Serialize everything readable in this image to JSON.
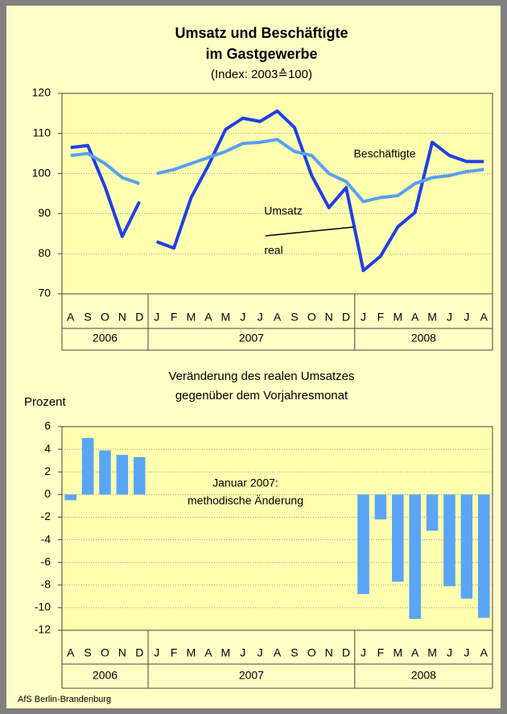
{
  "chart_data": [
    {
      "type": "line",
      "title_lines": [
        "Umsatz und Beschäftigte",
        "im Gastgewerbe"
      ],
      "subtitle": "(Index: 2003≙100)",
      "category_groups": [
        {
          "label": "2006",
          "categories": [
            "A",
            "S",
            "O",
            "N",
            "D"
          ]
        },
        {
          "label": "2007",
          "categories": [
            "J",
            "F",
            "M",
            "A",
            "M",
            "J",
            "J",
            "A",
            "S",
            "O",
            "N",
            "D"
          ],
          "joined": false
        },
        {
          "label": "2008",
          "categories": [
            "J",
            "F",
            "M",
            "A",
            "M",
            "J",
            "J",
            "A"
          ],
          "joined": true
        }
      ],
      "series": [
        {
          "name_lines": [
            "Umsatz",
            "real"
          ],
          "color": "#1f3fe6",
          "values": [
            [
              106.5,
              107,
              96.7,
              84.3,
              93
            ],
            [
              83,
              81.4,
              94,
              102,
              111,
              113.8,
              113,
              115.6,
              111.5,
              99.5,
              91.5,
              96.5
            ],
            [
              75.8,
              79.4,
              86.7,
              90.3,
              107.8,
              104.5,
              103,
              103
            ]
          ]
        },
        {
          "name_lines": [
            "Beschäftigte"
          ],
          "color": "#5a9ff0",
          "values": [
            [
              104.5,
              105,
              102.5,
              99,
              97.5
            ],
            [
              100,
              101,
              102.5,
              104,
              105.5,
              107.5,
              107.8,
              108.5,
              105.5,
              104.5,
              100,
              98
            ],
            [
              93,
              94,
              94.5,
              97.5,
              99,
              99.5,
              100.5,
              101
            ]
          ]
        }
      ],
      "ylim": [
        70,
        120
      ],
      "yticks": [
        70,
        80,
        90,
        100,
        110,
        120
      ],
      "grid": true
    },
    {
      "type": "bar",
      "title_lines": [
        "Veränderung des realen Umsatzes",
        "gegenüber dem Vorjahresmonat"
      ],
      "y_label": "Prozent",
      "annotation_lines": [
        "Januar 2007:",
        "methodische Änderung"
      ],
      "category_groups": [
        {
          "label": "2006",
          "categories": [
            "A",
            "S",
            "O",
            "N",
            "D"
          ]
        },
        {
          "label": "2007",
          "categories": [
            "J",
            "F",
            "M",
            "A",
            "M",
            "J",
            "J",
            "A",
            "S",
            "O",
            "N",
            "D"
          ]
        },
        {
          "label": "2008",
          "categories": [
            "J",
            "F",
            "M",
            "A",
            "M",
            "J",
            "J",
            "A"
          ]
        }
      ],
      "color": "#5aa5f5",
      "values": [
        [
          -0.5,
          5.0,
          3.9,
          3.5,
          3.3
        ],
        [
          null,
          null,
          null,
          null,
          null,
          null,
          null,
          null,
          null,
          null,
          null,
          null
        ],
        [
          -8.8,
          -2.2,
          -7.7,
          -11.0,
          -3.2,
          -8.1,
          -9.2,
          -10.9
        ]
      ],
      "ylim": [
        -12,
        6
      ],
      "yticks": [
        -12,
        -10,
        -8,
        -6,
        -4,
        -2,
        0,
        2,
        4,
        6
      ],
      "grid": true
    }
  ],
  "source": "AfS Berlin-Brandenburg"
}
